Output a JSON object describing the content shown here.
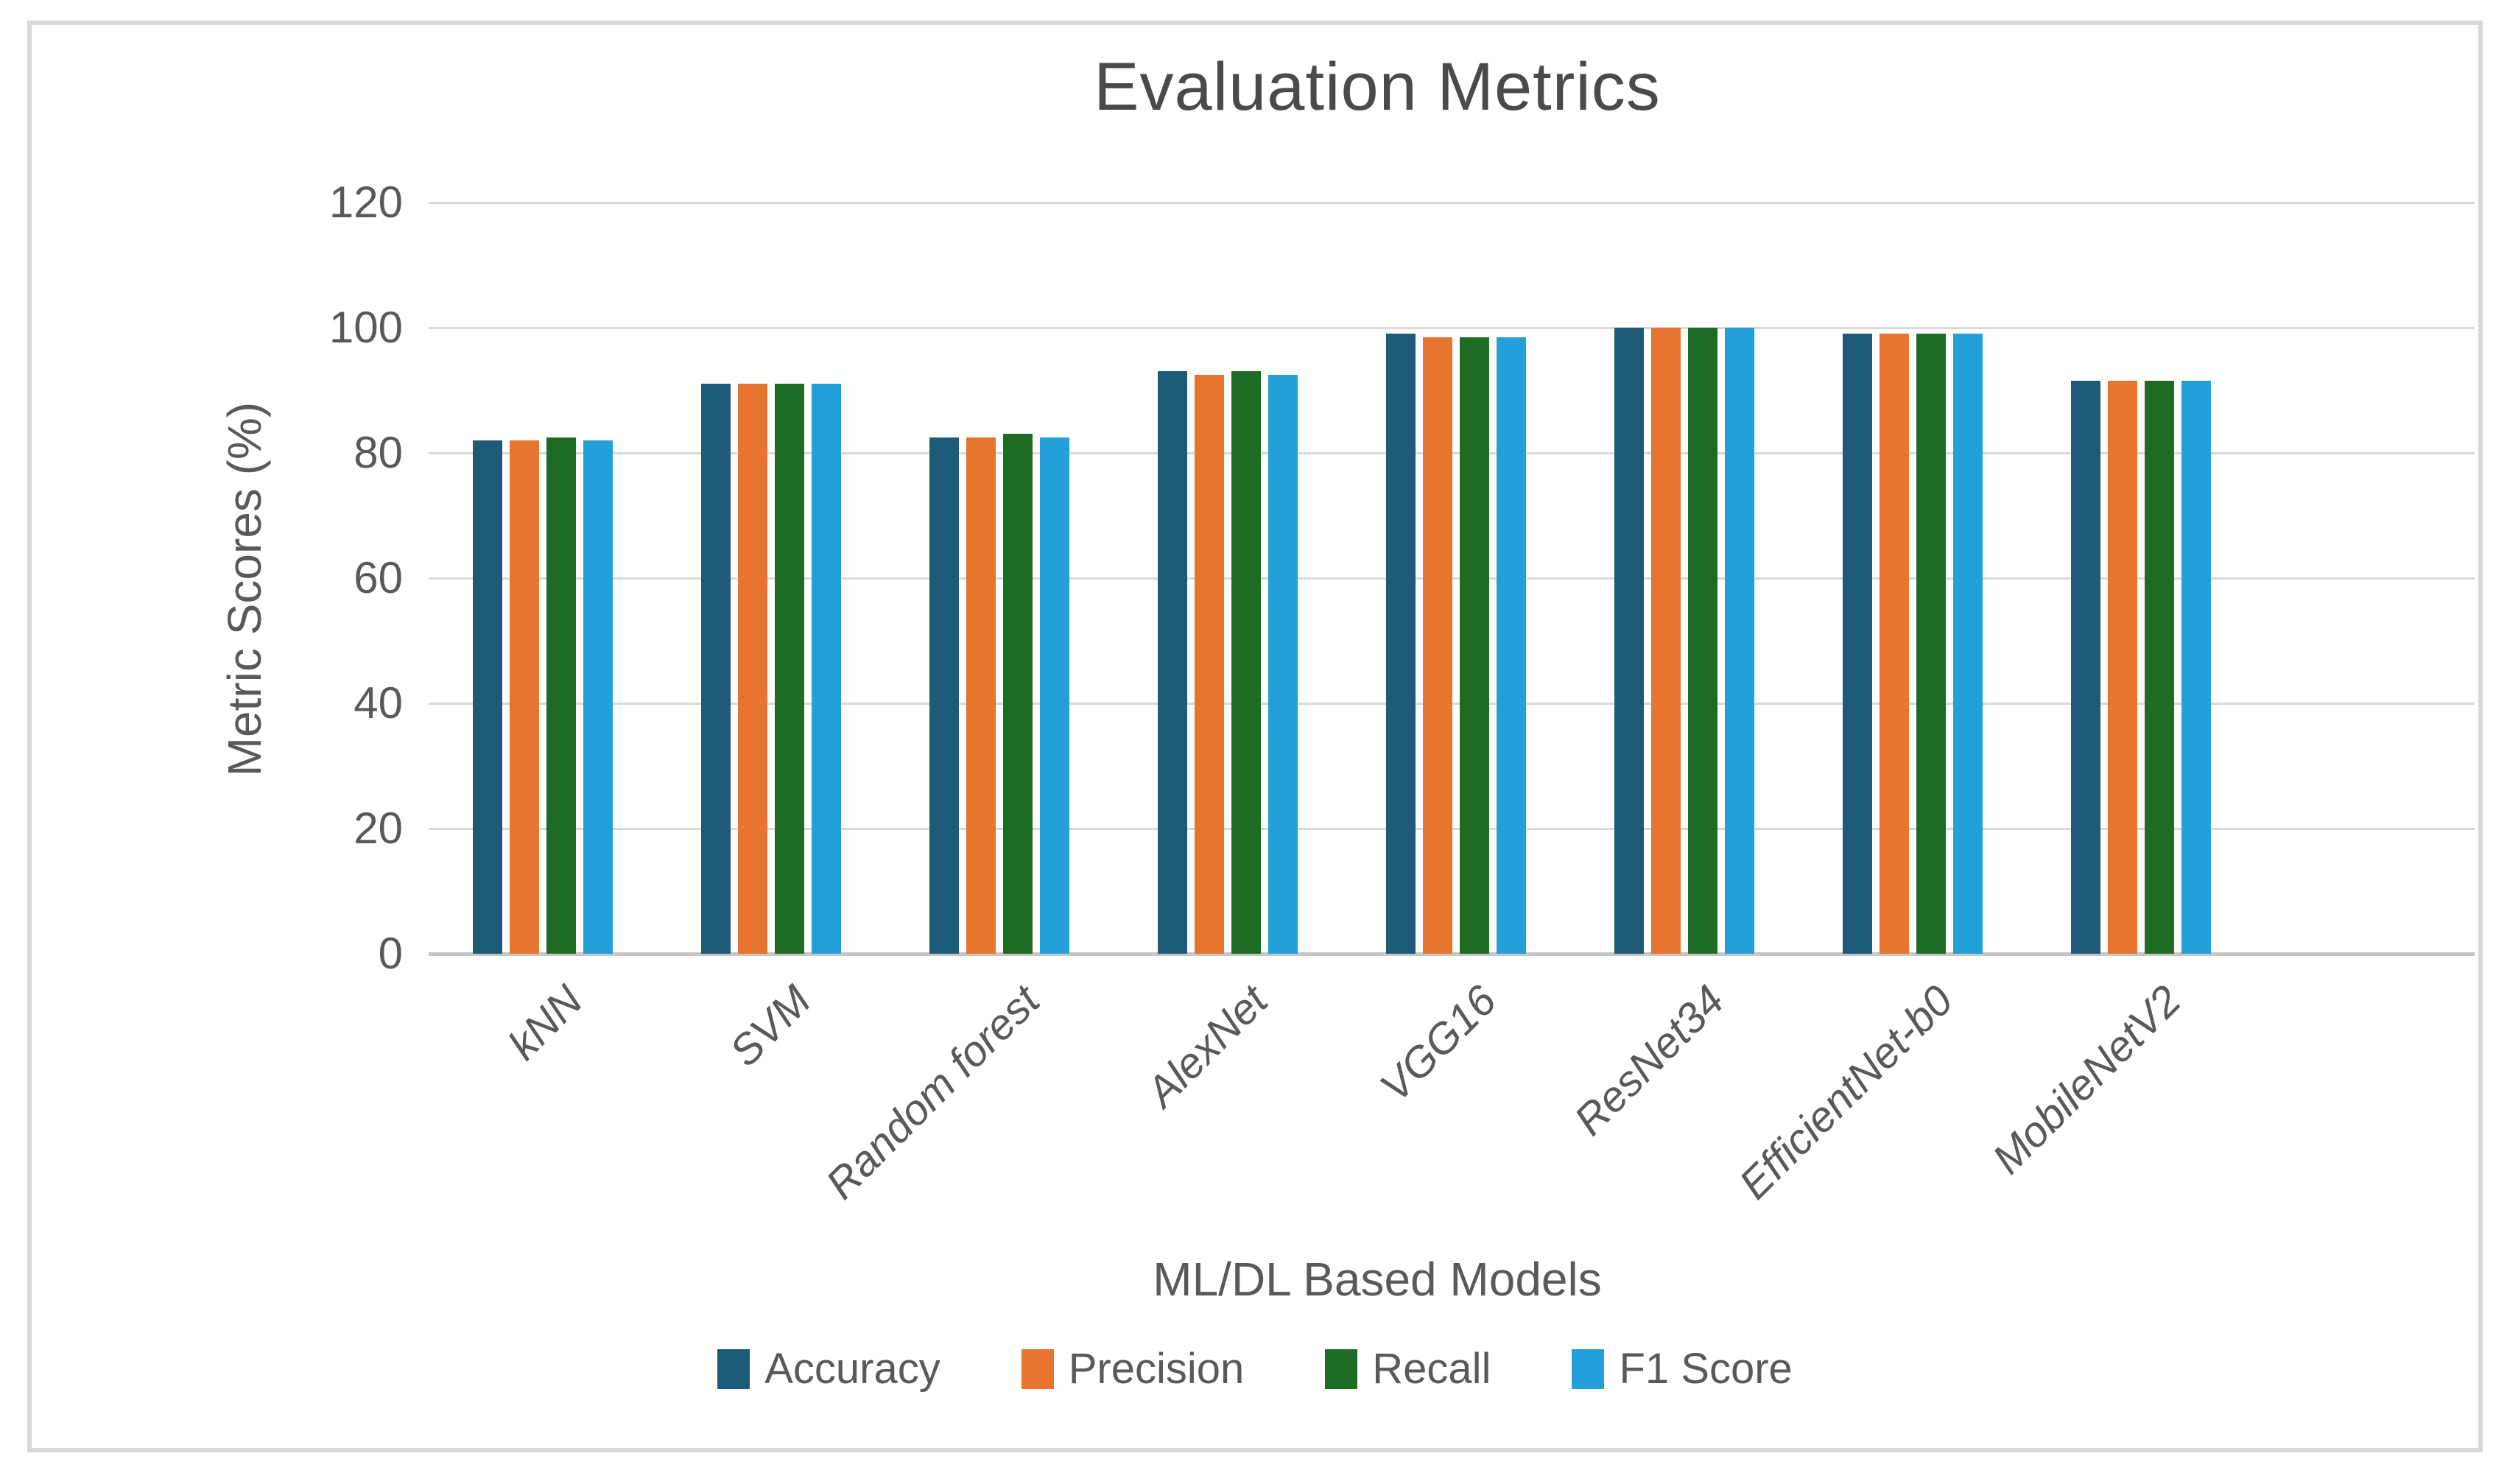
{
  "chart": {
    "title": "Evaluation Metrics",
    "y_axis_title": "Metric Scores (%)",
    "x_axis_title": "ML/DL Based Models"
  },
  "colors": {
    "accuracy": "#1d5a77",
    "precision": "#e7752d",
    "recall": "#1e6b24",
    "f1_score": "#23a0da",
    "gridline": "#d9d9d9",
    "axis_line": "#c6c6c6",
    "text": "#595959",
    "title_text": "#4a4a4a",
    "frame_border": "#d8d8d8"
  },
  "chart_data": {
    "type": "bar",
    "title": "Evaluation Metrics",
    "xlabel": "ML/DL Based Models",
    "ylabel": "Metric Scores (%)",
    "ylim": [
      0,
      120
    ],
    "yticks": [
      0,
      20,
      40,
      60,
      80,
      100,
      120
    ],
    "grid": true,
    "legend_position": "bottom",
    "categories": [
      "kNN",
      "SVM",
      "Random forest",
      "AlexNet",
      "VGG16",
      "ResNet34",
      "EfficientNet-b0",
      "MobileNetV2"
    ],
    "series": [
      {
        "name": "Accuracy",
        "color": "#1d5a77",
        "values": [
          82,
          91,
          82.5,
          93,
          99,
          100,
          99,
          91.5
        ]
      },
      {
        "name": "Precision",
        "color": "#e7752d",
        "values": [
          82,
          91,
          82.5,
          92.5,
          98.5,
          100,
          99,
          91.5
        ]
      },
      {
        "name": "Recall",
        "color": "#1e6b24",
        "values": [
          82.5,
          91,
          83,
          93,
          98.5,
          100,
          99,
          91.5
        ]
      },
      {
        "name": "F1 Score",
        "color": "#23a0da",
        "values": [
          82,
          91,
          82.5,
          92.5,
          98.5,
          100,
          99,
          91.5
        ]
      }
    ]
  }
}
